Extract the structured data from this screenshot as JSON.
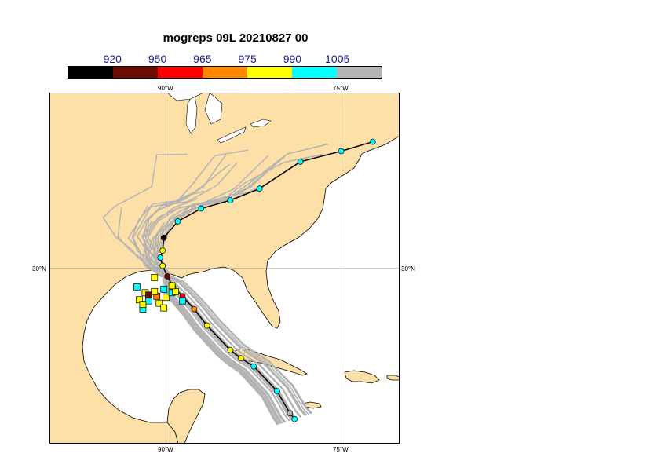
{
  "title": "mogreps 09L 20210827 00",
  "colorbar": {
    "colors": [
      "#000000",
      "#6b0d00",
      "#ff0000",
      "#ff8800",
      "#ffff00",
      "#00ffff",
      "#b3b3b3"
    ],
    "tick_labels": [
      "920",
      "950",
      "965",
      "975",
      "990",
      "1005"
    ]
  },
  "axes": {
    "lon_labels": [
      "90°W",
      "75°W"
    ],
    "lat_label": "30°N"
  },
  "map": {
    "land_color": "#fde0a8",
    "sea_color": "#ffffff",
    "ensemble_color": "#b3b3b3",
    "main_track_color": "#000000",
    "extent": {
      "lon": [
        -100,
        -70
      ],
      "lat": [
        15,
        45
      ]
    }
  },
  "main_track": [
    {
      "lon": -79.0,
      "lat": 17.1,
      "color": "#00ffff"
    },
    {
      "lon": -79.4,
      "lat": 17.6,
      "color": "#b3b3b3"
    },
    {
      "lon": -80.5,
      "lat": 19.5,
      "color": "#00ffff"
    },
    {
      "lon": -82.5,
      "lat": 21.6,
      "color": "#00ffff"
    },
    {
      "lon": -83.6,
      "lat": 22.3,
      "color": "#ffff00"
    },
    {
      "lon": -84.5,
      "lat": 23.0,
      "color": "#ffff00"
    },
    {
      "lon": -86.5,
      "lat": 25.1,
      "color": "#ffff00"
    },
    {
      "lon": -87.6,
      "lat": 26.5,
      "color": "#ff8800"
    },
    {
      "lon": -88.6,
      "lat": 27.6,
      "color": "#ff0000"
    },
    {
      "lon": -89.4,
      "lat": 28.4,
      "color": "#6b0d00"
    },
    {
      "lon": -89.9,
      "lat": 29.3,
      "color": "#6b0d00"
    },
    {
      "lon": -90.3,
      "lat": 30.2,
      "color": "#ffff00"
    },
    {
      "lon": -90.5,
      "lat": 30.9,
      "color": "#00ffff"
    },
    {
      "lon": -90.3,
      "lat": 31.5,
      "color": "#ffff00"
    },
    {
      "lon": -90.2,
      "lat": 32.6,
      "color": "#000000"
    },
    {
      "lon": -89.0,
      "lat": 34.0,
      "color": "#00ffff"
    },
    {
      "lon": -87.0,
      "lat": 35.1,
      "color": "#00ffff"
    },
    {
      "lon": -84.5,
      "lat": 35.8,
      "color": "#00ffff"
    },
    {
      "lon": -82.0,
      "lat": 36.8,
      "color": "#00ffff"
    },
    {
      "lon": -78.5,
      "lat": 39.1,
      "color": "#00ffff"
    },
    {
      "lon": -75.0,
      "lat": 40.0,
      "color": "#00ffff"
    },
    {
      "lon": -72.3,
      "lat": 40.8,
      "color": "#00ffff"
    }
  ],
  "landfall_markers": [
    {
      "lon": -91.0,
      "lat": 29.2,
      "color": "#ffff00"
    },
    {
      "lon": -92.5,
      "lat": 28.4,
      "color": "#00ffff"
    },
    {
      "lon": -91.8,
      "lat": 27.9,
      "color": "#ffff00"
    },
    {
      "lon": -92.3,
      "lat": 27.3,
      "color": "#ffff00"
    },
    {
      "lon": -91.5,
      "lat": 27.2,
      "color": "#00ffff"
    },
    {
      "lon": -90.8,
      "lat": 27.6,
      "color": "#ff8800"
    },
    {
      "lon": -90.0,
      "lat": 27.5,
      "color": "#ffff00"
    },
    {
      "lon": -89.5,
      "lat": 27.9,
      "color": "#00ffff"
    },
    {
      "lon": -89.2,
      "lat": 28.0,
      "color": "#ffff00"
    },
    {
      "lon": -90.2,
      "lat": 28.2,
      "color": "#00ffff"
    },
    {
      "lon": -91.0,
      "lat": 28.0,
      "color": "#ffff00"
    },
    {
      "lon": -90.6,
      "lat": 27.0,
      "color": "#ffff00"
    },
    {
      "lon": -90.2,
      "lat": 26.6,
      "color": "#ffff00"
    },
    {
      "lon": -92.0,
      "lat": 26.5,
      "color": "#00ffff"
    },
    {
      "lon": -92.0,
      "lat": 26.9,
      "color": "#ffff00"
    },
    {
      "lon": -89.5,
      "lat": 28.5,
      "color": "#ffff00"
    },
    {
      "lon": -88.6,
      "lat": 27.2,
      "color": "#00ffff"
    },
    {
      "lon": -91.5,
      "lat": 27.7,
      "color": "#6b0d00"
    }
  ]
}
